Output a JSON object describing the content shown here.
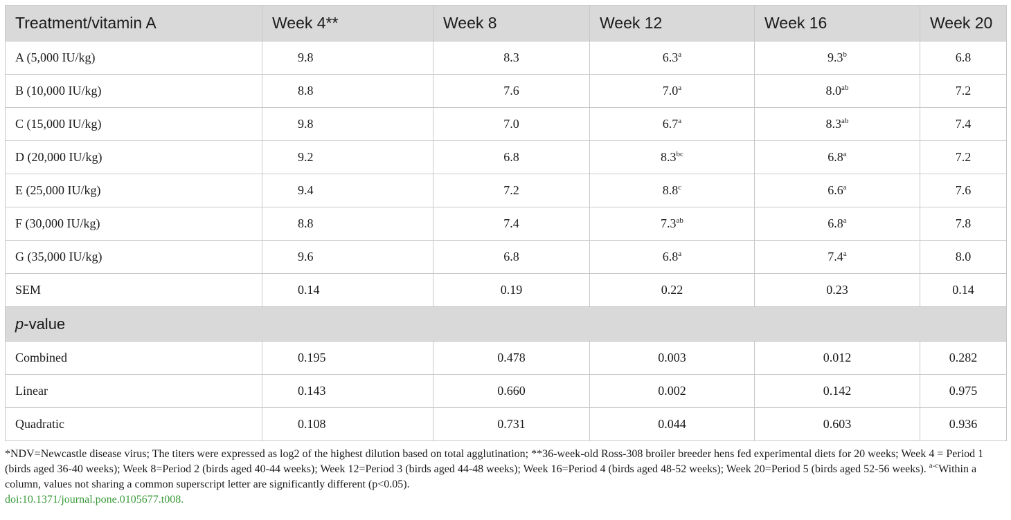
{
  "table": {
    "headers": [
      "Treatment/vitamin A",
      "Week 4**",
      "Week 8",
      "Week 12",
      "Week 16",
      "Week 20"
    ],
    "rows": [
      {
        "label": "A (5,000 IU/kg)",
        "cells": [
          {
            "v": "9.8",
            "s": ""
          },
          {
            "v": "8.3",
            "s": ""
          },
          {
            "v": "6.3",
            "s": "a"
          },
          {
            "v": "9.3",
            "s": "b"
          },
          {
            "v": "6.8",
            "s": ""
          }
        ]
      },
      {
        "label": "B (10,000 IU/kg)",
        "cells": [
          {
            "v": "8.8",
            "s": ""
          },
          {
            "v": "7.6",
            "s": ""
          },
          {
            "v": "7.0",
            "s": "a"
          },
          {
            "v": "8.0",
            "s": "ab"
          },
          {
            "v": "7.2",
            "s": ""
          }
        ]
      },
      {
        "label": "C (15,000 IU/kg)",
        "cells": [
          {
            "v": "9.8",
            "s": ""
          },
          {
            "v": "7.0",
            "s": ""
          },
          {
            "v": "6.7",
            "s": "a"
          },
          {
            "v": "8.3",
            "s": "ab"
          },
          {
            "v": "7.4",
            "s": ""
          }
        ]
      },
      {
        "label": "D (20,000 IU/kg)",
        "cells": [
          {
            "v": "9.2",
            "s": ""
          },
          {
            "v": "6.8",
            "s": ""
          },
          {
            "v": "8.3",
            "s": "bc"
          },
          {
            "v": "6.8",
            "s": "a"
          },
          {
            "v": "7.2",
            "s": ""
          }
        ]
      },
      {
        "label": "E (25,000 IU/kg)",
        "cells": [
          {
            "v": "9.4",
            "s": ""
          },
          {
            "v": "7.2",
            "s": ""
          },
          {
            "v": "8.8",
            "s": "c"
          },
          {
            "v": "6.6",
            "s": "a"
          },
          {
            "v": "7.6",
            "s": ""
          }
        ]
      },
      {
        "label": "F (30,000 IU/kg)",
        "cells": [
          {
            "v": "8.8",
            "s": ""
          },
          {
            "v": "7.4",
            "s": ""
          },
          {
            "v": "7.3",
            "s": "ab"
          },
          {
            "v": "6.8",
            "s": "a"
          },
          {
            "v": "7.8",
            "s": ""
          }
        ]
      },
      {
        "label": "G (35,000 IU/kg)",
        "cells": [
          {
            "v": "9.6",
            "s": ""
          },
          {
            "v": "6.8",
            "s": ""
          },
          {
            "v": "6.8",
            "s": "a"
          },
          {
            "v": "7.4",
            "s": "a"
          },
          {
            "v": "8.0",
            "s": ""
          }
        ]
      },
      {
        "label": "SEM",
        "cells": [
          {
            "v": "0.14",
            "s": ""
          },
          {
            "v": "0.19",
            "s": ""
          },
          {
            "v": "0.22",
            "s": ""
          },
          {
            "v": "0.23",
            "s": ""
          },
          {
            "v": "0.14",
            "s": ""
          }
        ]
      }
    ],
    "pvalue_section": {
      "italic": "p",
      "rest": "-value"
    },
    "pvalue_rows": [
      {
        "label": "Combined",
        "cells": [
          "0.195",
          "0.478",
          "0.003",
          "0.012",
          "0.282"
        ]
      },
      {
        "label": "Linear",
        "cells": [
          "0.143",
          "0.660",
          "0.002",
          "0.142",
          "0.975"
        ]
      },
      {
        "label": "Quadratic",
        "cells": [
          "0.108",
          "0.731",
          "0.044",
          "0.603",
          "0.936"
        ]
      }
    ]
  },
  "footnote": {
    "text1": "*NDV=Newcastle disease virus; The titers were expressed as log2 of the highest dilution based on total agglutination; **36-week-old Ross-308 broiler breeder hens fed experimental diets for 20 weeks; Week 4 = Period 1 (birds aged 36-40 weeks); Week 8=Period 2 (birds aged 40-44 weeks); Week 12=Period 3 (birds aged 44-48 weeks); Week 16=Period 4 (birds aged 48-52 weeks); Week 20=Period 5 (birds aged 52-56 weeks). ",
    "sup": "a-c",
    "text2": "Within a column, values not sharing a common superscript letter are significantly different (p<0.05).",
    "doi": "doi:10.1371/journal.pone.0105677.t008."
  },
  "colors": {
    "header_bg": "#d9d9d9",
    "doi_link": "#3a9a3a"
  }
}
